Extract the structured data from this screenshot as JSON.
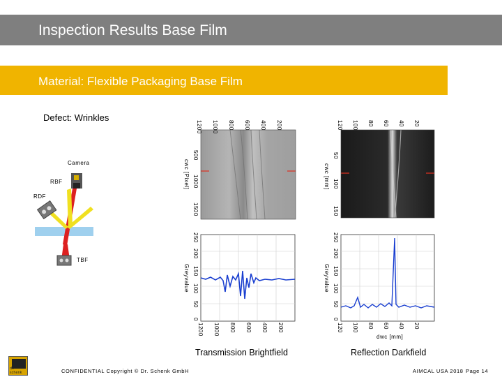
{
  "header": {
    "title": "Inspection Results Base Film"
  },
  "material": {
    "text": "Material:  Flexible Packaging Base Film"
  },
  "defect": {
    "text": "Defect: Wrinkles"
  },
  "diagram": {
    "camera_label": "Camera",
    "rbf_label": "RBF",
    "rdf_label": "RDF",
    "tbf_label": "TBF"
  },
  "left_plot": {
    "image_top_ticks": [
      "1200",
      "1000",
      "800",
      "600",
      "400",
      "200"
    ],
    "image_y_ticks": [
      "500",
      "1000",
      "1500"
    ],
    "image_y_label": "cwc [Pixel]",
    "graph_y_ticks": [
      "250",
      "200",
      "150",
      "100",
      "50",
      "0"
    ],
    "graph_y_label": "Greyvalue",
    "graph_x_ticks": [
      "1200",
      "1000",
      "800",
      "600",
      "400",
      "200"
    ],
    "caption": "Transmission Brightfield"
  },
  "right_plot": {
    "image_top_ticks": [
      "120",
      "100",
      "80",
      "60",
      "40",
      "20"
    ],
    "image_y_ticks": [
      "50",
      "100",
      "150"
    ],
    "image_y_label": "cwc [mm]",
    "graph_y_ticks": [
      "250",
      "200",
      "150",
      "100",
      "50",
      "0"
    ],
    "graph_y_label": "Greyvalue",
    "graph_x_ticks": [
      "120",
      "100",
      "80",
      "60",
      "40",
      "20"
    ],
    "graph_x_label": "dwc [mm]",
    "caption": "Reflection Darkfield"
  },
  "footer": {
    "confidential": "CONFIDENTIAL  Copyright © Dr. Schenk GmbH",
    "event": "AIMCAL USA 2018",
    "page": "Page 14",
    "logo_text": "dr. schenk"
  },
  "colors": {
    "title_bar": "#7f7f7f",
    "material_bar": "#f0b400",
    "signal": "#1a3fd0",
    "marker": "#e03020"
  }
}
